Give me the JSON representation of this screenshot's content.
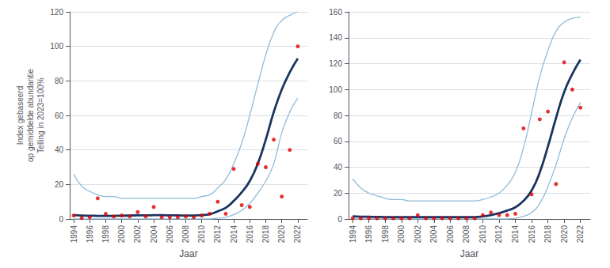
{
  "chart_data": [
    {
      "type": "line",
      "xlabel": "Jaar",
      "ylabel": "Index gebaseerd\nop gemiddelde abundantie\nTelling in 2023=100%",
      "x": [
        1994,
        1995,
        1996,
        1997,
        1998,
        1999,
        2000,
        2001,
        2002,
        2003,
        2004,
        2005,
        2006,
        2007,
        2008,
        2009,
        2010,
        2011,
        2012,
        2013,
        2014,
        2015,
        2016,
        2017,
        2018,
        2019,
        2020,
        2021,
        2022
      ],
      "series": [
        {
          "type": "line",
          "color": "#90bcd8",
          "values": [
            26,
            19,
            16,
            14,
            13,
            13,
            12,
            12,
            12,
            12,
            12,
            12,
            12,
            12,
            12,
            12,
            13,
            14,
            18,
            23,
            32,
            44,
            60,
            78,
            95,
            108,
            115,
            118,
            120
          ]
        },
        {
          "type": "line",
          "color": "#90bcd8",
          "values": [
            0.0,
            0.0,
            0.0,
            0.0,
            0.0,
            0.0,
            0.0,
            0.0,
            0.0,
            0.0,
            0.0,
            0.0,
            0.0,
            0.0,
            0.0,
            0.0,
            0.0,
            0.0,
            0.5,
            1.0,
            2.5,
            5.0,
            9.0,
            15.0,
            22.0,
            32.0,
            50.0,
            62.0,
            70.0
          ]
        },
        {
          "type": "line",
          "color": "#1a3560",
          "values": [
            2.2,
            2.0,
            1.9,
            1.8,
            1.8,
            1.8,
            1.9,
            2.0,
            2.1,
            2.1,
            2.2,
            2.2,
            2.1,
            2.1,
            2.0,
            2.0,
            2.2,
            2.8,
            4.5,
            6.5,
            10.5,
            15.5,
            22.0,
            32.0,
            46.0,
            62.0,
            75.0,
            85.0,
            93.0
          ]
        },
        {
          "type": "scatter",
          "color": "#dd0000",
          "values": [
            2,
            0.5,
            1,
            12,
            3,
            1.5,
            2,
            1.5,
            4,
            1.5,
            7,
            1,
            1,
            1,
            1.5,
            1,
            2,
            3,
            10,
            3,
            29,
            8,
            7,
            32,
            30,
            46,
            13,
            40,
            100
          ]
        }
      ],
      "xlim": [
        1993.5,
        2023.2
      ],
      "xticks": [
        1994,
        1996,
        1998,
        2000,
        2002,
        2004,
        2006,
        2008,
        2010,
        2012,
        2014,
        2016,
        2018,
        2020,
        2022
      ],
      "ylim": [
        0,
        120
      ],
      "yticks": [
        0,
        20,
        40,
        60,
        80,
        100,
        120
      ],
      "grid": "y"
    },
    {
      "type": "line",
      "xlabel": "Jaar",
      "x": [
        1994,
        1995,
        1996,
        1997,
        1998,
        1999,
        2000,
        2001,
        2002,
        2003,
        2004,
        2005,
        2006,
        2007,
        2008,
        2009,
        2010,
        2011,
        2012,
        2013,
        2014,
        2015,
        2016,
        2017,
        2018,
        2019,
        2020,
        2021,
        2022
      ],
      "series": [
        {
          "type": "line",
          "color": "#90bcd8",
          "values": [
            31,
            24,
            20,
            18,
            16,
            15,
            15,
            14,
            14,
            14,
            14,
            14,
            14,
            14,
            14,
            14,
            15,
            17,
            20,
            26,
            36,
            55,
            82,
            110,
            130,
            145,
            152,
            155,
            156
          ]
        },
        {
          "type": "line",
          "color": "#90bcd8",
          "values": [
            0.0,
            0.0,
            0.0,
            0.0,
            0.0,
            0.0,
            0.0,
            0.0,
            0.0,
            0.0,
            0.0,
            0.0,
            0.0,
            0.0,
            0.0,
            0.0,
            0.0,
            0.0,
            0.0,
            0.0,
            0.5,
            2.0,
            5.0,
            12.0,
            25.0,
            42.0,
            62.0,
            78.0,
            90.0
          ]
        },
        {
          "type": "line",
          "color": "#1a3560",
          "values": [
            2.0,
            1.8,
            1.7,
            1.6,
            1.5,
            1.5,
            1.5,
            1.5,
            1.5,
            1.5,
            1.5,
            1.5,
            1.5,
            1.5,
            1.5,
            1.5,
            2.0,
            3.0,
            4.5,
            6.5,
            9.0,
            14.0,
            22.0,
            36.0,
            56.0,
            78.0,
            98.0,
            112.0,
            123.0
          ]
        },
        {
          "type": "scatter",
          "color": "#dd0000",
          "values": [
            0.5,
            0.5,
            0.5,
            0.5,
            0.5,
            0.5,
            0.5,
            0.5,
            3,
            0.5,
            0.5,
            0.5,
            0.5,
            0.5,
            0.5,
            0.5,
            3,
            5,
            3,
            3,
            4,
            70,
            19,
            77,
            83,
            27,
            121,
            100,
            86
          ]
        }
      ],
      "xlim": [
        1993.5,
        2023.2
      ],
      "xticks": [
        1994,
        1996,
        1998,
        2000,
        2002,
        2004,
        2006,
        2008,
        2010,
        2012,
        2014,
        2016,
        2018,
        2020,
        2022
      ],
      "ylim": [
        0,
        160
      ],
      "yticks": [
        0,
        20,
        40,
        60,
        80,
        100,
        120,
        140,
        160
      ],
      "grid": "y"
    }
  ]
}
